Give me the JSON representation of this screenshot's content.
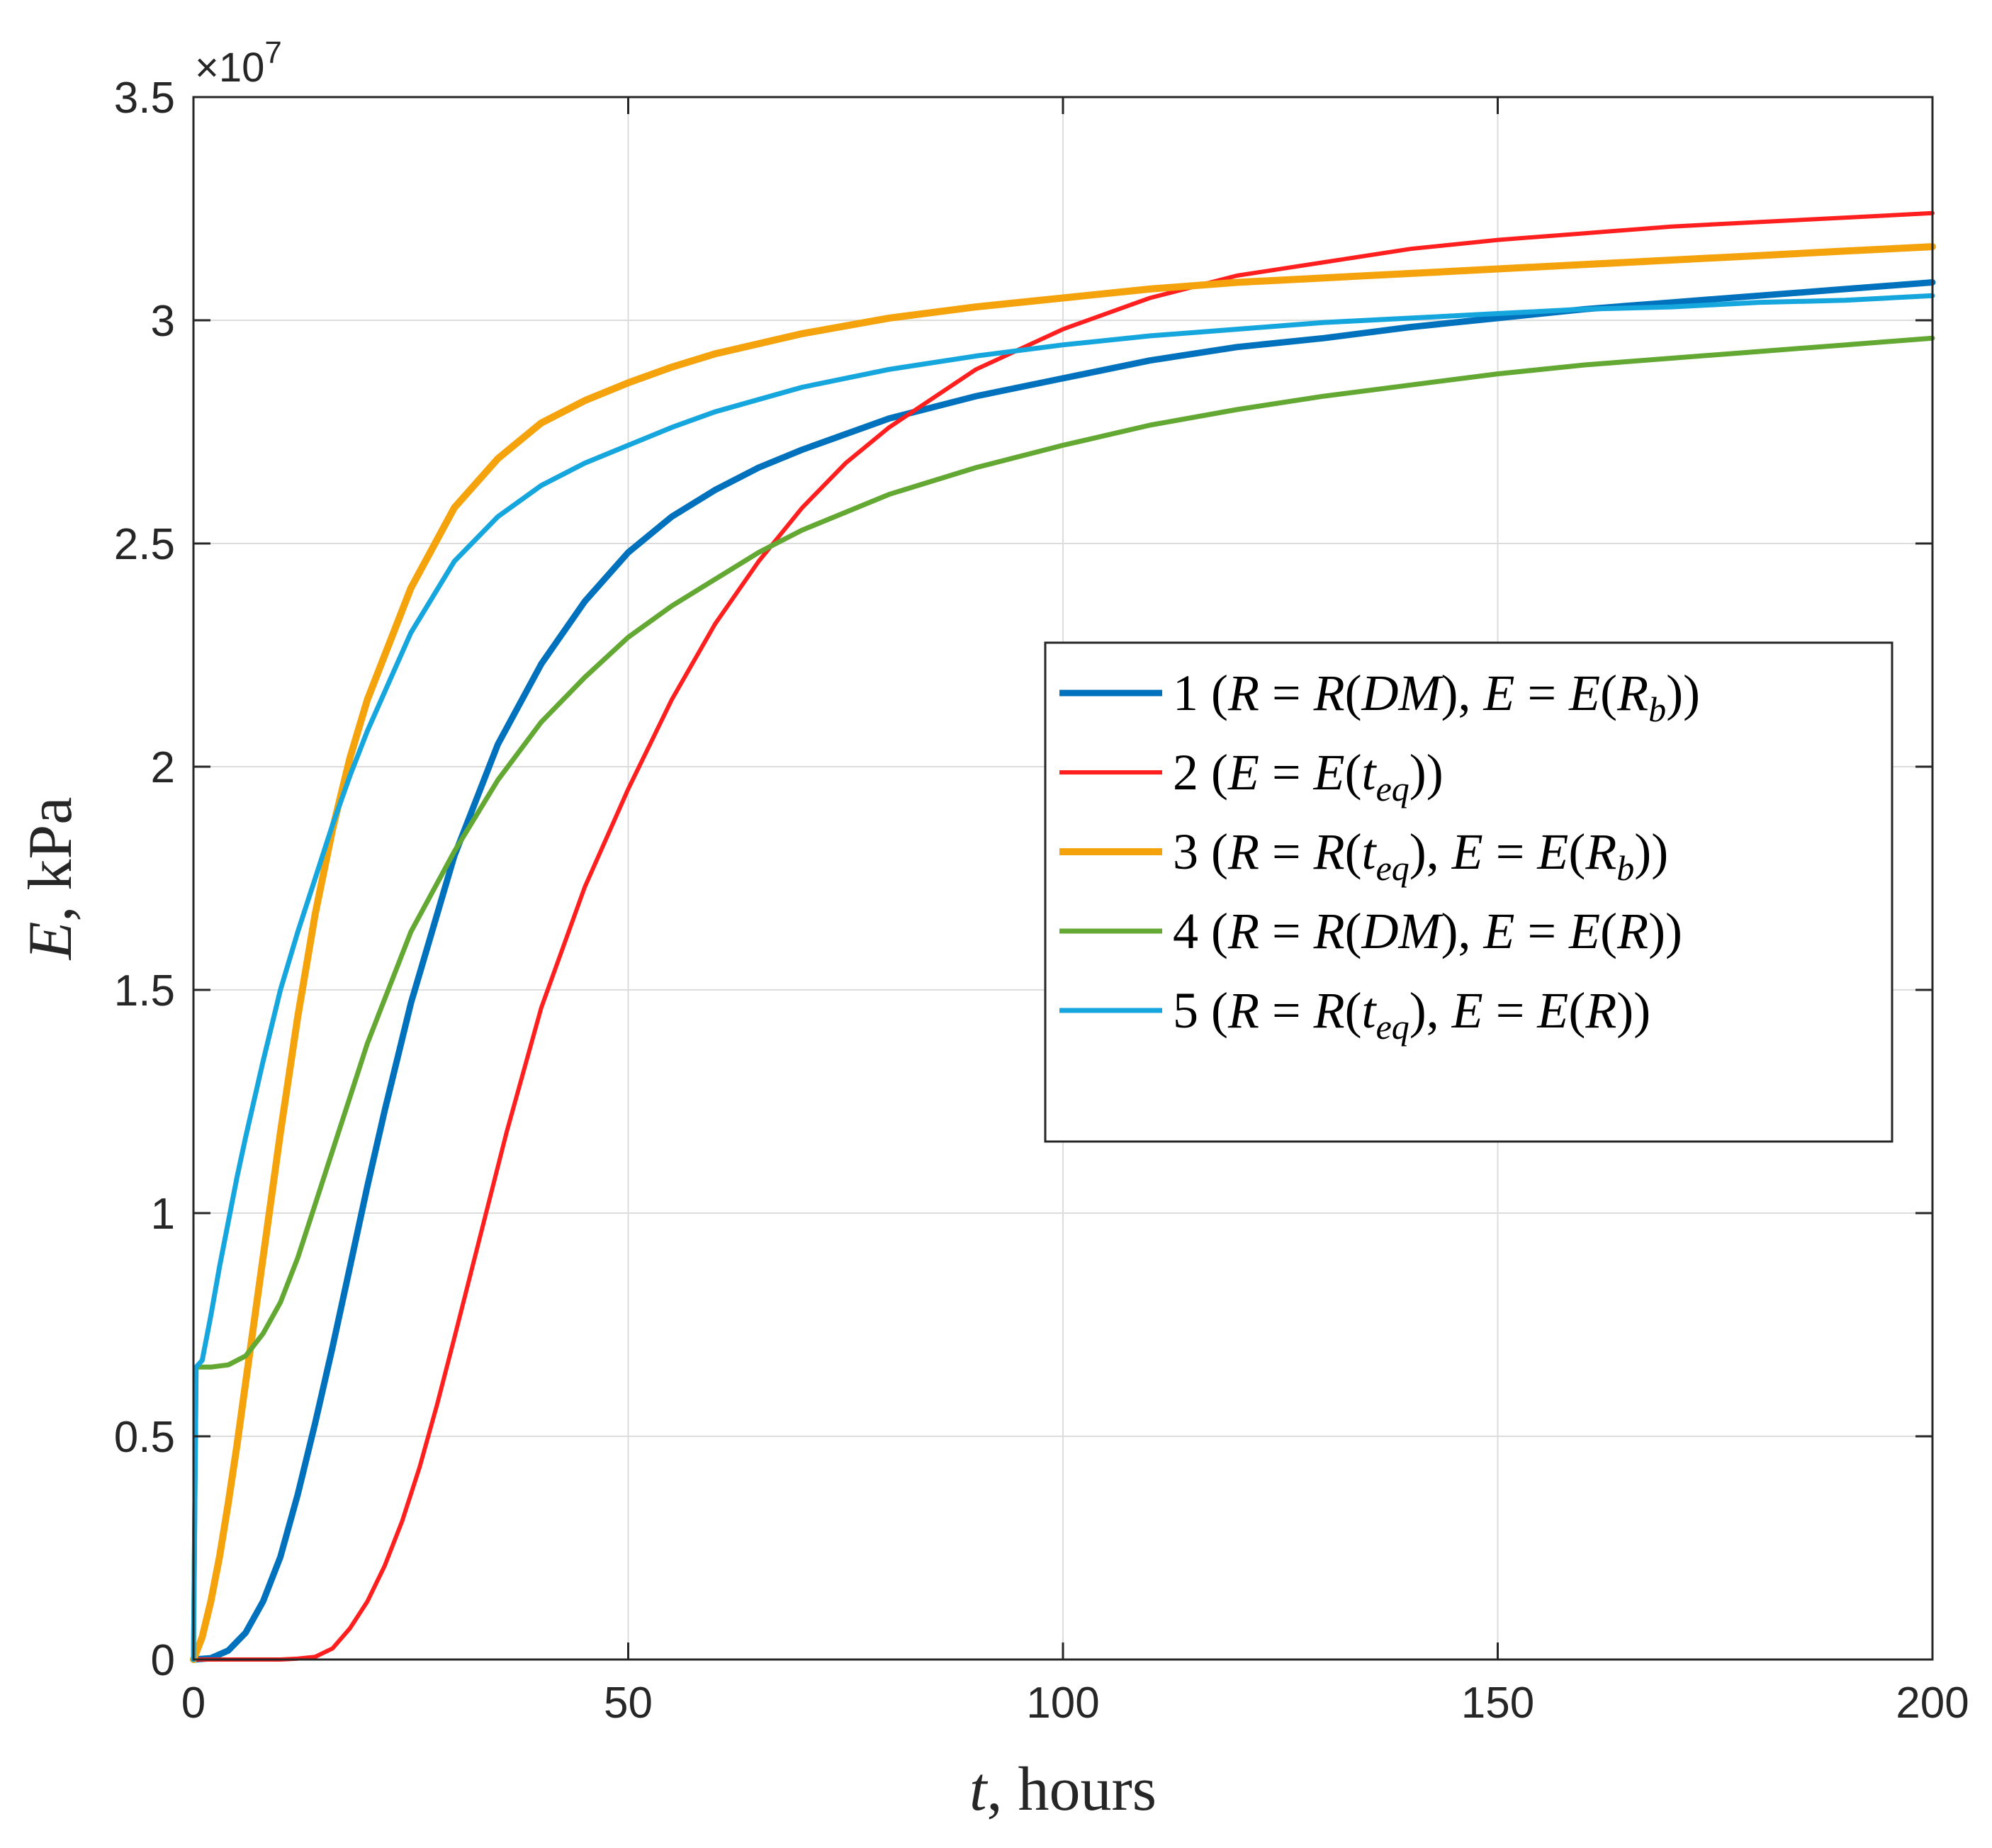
{
  "chart_data": {
    "type": "line",
    "title": "",
    "xlabel": {
      "var": "t",
      "rest": ", hours"
    },
    "ylabel": {
      "var": "E",
      "rest": ", kPa"
    },
    "xlim": [
      0,
      200
    ],
    "ylim": [
      0,
      35000000
    ],
    "xticks": [
      0,
      50,
      100,
      150,
      200
    ],
    "xtick_labels": [
      "0",
      "50",
      "100",
      "150",
      "200"
    ],
    "yticks": [
      0,
      5000000,
      10000000,
      15000000,
      20000000,
      25000000,
      30000000,
      35000000
    ],
    "ytick_labels": [
      "0",
      "0.5",
      "1",
      "1.5",
      "2",
      "2.5",
      "3",
      "3.5"
    ],
    "y_exponent": {
      "base": "×10",
      "power": "7"
    },
    "grid": true,
    "legend_position": "center-right",
    "series": [
      {
        "name": "1",
        "color": "#0072BD",
        "legend": [
          [
            "1 (",
            ""
          ],
          [
            "R",
            "i"
          ],
          [
            " = ",
            ""
          ],
          [
            "R",
            "i"
          ],
          [
            "(",
            ""
          ],
          [
            "DM",
            "i"
          ],
          [
            "), ",
            ""
          ],
          [
            "E",
            "i"
          ],
          [
            " = ",
            ""
          ],
          [
            "E",
            "i"
          ],
          [
            "(",
            ""
          ],
          [
            "R",
            "i"
          ],
          [
            "b",
            "sub"
          ],
          [
            "))",
            ""
          ]
        ],
        "x": [
          0,
          2,
          4,
          6,
          8,
          10,
          12,
          14,
          16,
          18,
          20,
          22,
          25,
          30,
          35,
          40,
          45,
          50,
          55,
          60,
          65,
          70,
          80,
          90,
          100,
          110,
          120,
          130,
          140,
          150,
          160,
          170,
          180,
          190,
          200
        ],
        "y": [
          0,
          30000,
          200000,
          600000,
          1300000,
          2300000,
          3700000,
          5300000,
          7000000,
          8800000,
          10600000,
          12300000,
          14700000,
          18000000,
          20500000,
          22300000,
          23700000,
          24800000,
          25600000,
          26200000,
          26700000,
          27100000,
          27800000,
          28300000,
          28700000,
          29100000,
          29400000,
          29600000,
          29850000,
          30050000,
          30250000,
          30400000,
          30550000,
          30700000,
          30850000
        ]
      },
      {
        "name": "2",
        "color": "#FF1F1F",
        "legend": [
          [
            "2 (",
            ""
          ],
          [
            "E",
            "i"
          ],
          [
            " = ",
            ""
          ],
          [
            "E",
            "i"
          ],
          [
            "(",
            ""
          ],
          [
            "t",
            "i"
          ],
          [
            "eq",
            "sub"
          ],
          [
            "))",
            ""
          ]
        ],
        "x": [
          0,
          5,
          10,
          12,
          14,
          16,
          18,
          20,
          22,
          24,
          26,
          28,
          30,
          33,
          36,
          40,
          45,
          50,
          55,
          60,
          65,
          70,
          75,
          80,
          90,
          100,
          110,
          120,
          130,
          140,
          150,
          160,
          170,
          180,
          190,
          200
        ],
        "y": [
          0,
          0,
          0,
          20000,
          60000,
          250000,
          700000,
          1300000,
          2100000,
          3100000,
          4300000,
          5700000,
          7200000,
          9500000,
          11800000,
          14600000,
          17300000,
          19500000,
          21500000,
          23200000,
          24600000,
          25800000,
          26800000,
          27600000,
          28900000,
          29800000,
          30500000,
          31000000,
          31300000,
          31600000,
          31800000,
          31950000,
          32100000,
          32200000,
          32300000,
          32400000
        ]
      },
      {
        "name": "3",
        "color": "#F5A30C",
        "legend": [
          [
            "3 (",
            ""
          ],
          [
            "R",
            "i"
          ],
          [
            " = ",
            ""
          ],
          [
            "R",
            "i"
          ],
          [
            "(",
            ""
          ],
          [
            "t",
            "i"
          ],
          [
            "eq",
            "sub"
          ],
          [
            "), ",
            ""
          ],
          [
            "E",
            "i"
          ],
          [
            " = ",
            ""
          ],
          [
            "E",
            "i"
          ],
          [
            "(",
            ""
          ],
          [
            "R",
            "i"
          ],
          [
            "b",
            "sub"
          ],
          [
            "))",
            ""
          ]
        ],
        "x": [
          0,
          1,
          2,
          3,
          4,
          5,
          6,
          8,
          10,
          12,
          14,
          16,
          18,
          20,
          25,
          30,
          35,
          40,
          45,
          50,
          55,
          60,
          70,
          80,
          90,
          100,
          110,
          120,
          130,
          140,
          150,
          160,
          170,
          180,
          190,
          200
        ],
        "y": [
          0,
          500000,
          1300000,
          2300000,
          3500000,
          4800000,
          6200000,
          9000000,
          11800000,
          14400000,
          16700000,
          18600000,
          20200000,
          21500000,
          24000000,
          25800000,
          26900000,
          27700000,
          28200000,
          28600000,
          28950000,
          29250000,
          29700000,
          30050000,
          30300000,
          30500000,
          30700000,
          30850000,
          30950000,
          31050000,
          31150000,
          31250000,
          31350000,
          31450000,
          31550000,
          31650000
        ]
      },
      {
        "name": "4",
        "color": "#63A832",
        "legend": [
          [
            "4 (",
            ""
          ],
          [
            "R",
            "i"
          ],
          [
            " = ",
            ""
          ],
          [
            "R",
            "i"
          ],
          [
            "(",
            ""
          ],
          [
            "DM",
            "i"
          ],
          [
            "), ",
            ""
          ],
          [
            "E",
            "i"
          ],
          [
            " = ",
            ""
          ],
          [
            "E",
            "i"
          ],
          [
            "(",
            ""
          ],
          [
            "R",
            "i"
          ],
          [
            "))",
            ""
          ]
        ],
        "x": [
          0,
          0.3,
          1,
          2,
          4,
          6,
          8,
          10,
          12,
          14,
          16,
          18,
          20,
          25,
          30,
          35,
          40,
          45,
          50,
          55,
          60,
          65,
          70,
          80,
          90,
          100,
          110,
          120,
          130,
          140,
          150,
          160,
          170,
          180,
          190,
          200
        ],
        "y": [
          0,
          6550000,
          6550000,
          6550000,
          6600000,
          6800000,
          7300000,
          8000000,
          9000000,
          10200000,
          11400000,
          12600000,
          13800000,
          16300000,
          18100000,
          19700000,
          21000000,
          22000000,
          22900000,
          23600000,
          24200000,
          24800000,
          25300000,
          26100000,
          26700000,
          27200000,
          27650000,
          28000000,
          28300000,
          28550000,
          28800000,
          29000000,
          29150000,
          29300000,
          29450000,
          29600000
        ]
      },
      {
        "name": "5",
        "color": "#16A6DE",
        "legend": [
          [
            "5 (",
            ""
          ],
          [
            "R",
            "i"
          ],
          [
            " = ",
            ""
          ],
          [
            "R",
            "i"
          ],
          [
            "(",
            ""
          ],
          [
            "t",
            "i"
          ],
          [
            "eq",
            "sub"
          ],
          [
            "), ",
            ""
          ],
          [
            "E",
            "i"
          ],
          [
            " = ",
            ""
          ],
          [
            "E",
            "i"
          ],
          [
            "(",
            ""
          ],
          [
            "R",
            "i"
          ],
          [
            "))",
            ""
          ]
        ],
        "x": [
          0,
          0.3,
          1,
          2,
          3,
          4,
          5,
          6,
          8,
          10,
          12,
          14,
          16,
          18,
          20,
          25,
          30,
          35,
          40,
          45,
          50,
          55,
          60,
          70,
          80,
          90,
          100,
          110,
          120,
          130,
          140,
          150,
          160,
          170,
          180,
          190,
          200
        ],
        "y": [
          0,
          6550000,
          6700000,
          7700000,
          8800000,
          9800000,
          10800000,
          11700000,
          13400000,
          15000000,
          16300000,
          17500000,
          18700000,
          19800000,
          20800000,
          23000000,
          24600000,
          25600000,
          26300000,
          26800000,
          27200000,
          27600000,
          27950000,
          28500000,
          28900000,
          29200000,
          29450000,
          29650000,
          29800000,
          29950000,
          30050000,
          30150000,
          30250000,
          30300000,
          30400000,
          30450000,
          30550000
        ]
      }
    ]
  }
}
